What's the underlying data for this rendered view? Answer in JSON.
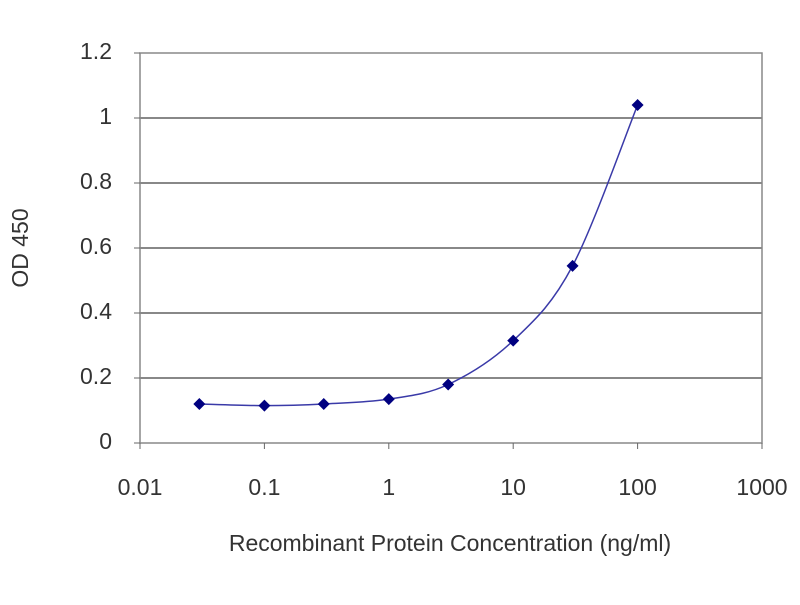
{
  "chart_data": {
    "type": "line",
    "xlabel": "Recombinant Protein Concentration (ng/ml)",
    "ylabel": "OD 450",
    "x": [
      0.03,
      0.1,
      0.3,
      1,
      3,
      10,
      30,
      100
    ],
    "series": [
      {
        "color": "#000080",
        "values": [
          0.12,
          0.115,
          0.12,
          0.135,
          0.18,
          0.315,
          0.545,
          1.04
        ]
      }
    ],
    "xscale": "log",
    "xlim": [
      0.01,
      1000
    ],
    "xticks": [
      0.01,
      0.1,
      1,
      10,
      100,
      1000
    ],
    "ylim": [
      0,
      1.2
    ],
    "yticks": [
      0,
      0.2,
      0.4,
      0.6,
      0.8,
      1,
      1.2
    ],
    "grid": true
  }
}
